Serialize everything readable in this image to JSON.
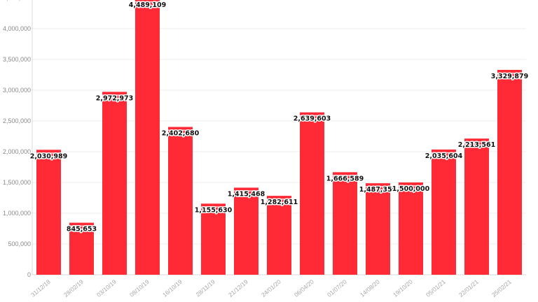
{
  "chart_data": {
    "type": "bar",
    "title": "",
    "xlabel": "",
    "ylabel": "",
    "categories": [
      "31/12/18",
      "28/02/19",
      "03/10/19",
      "08/10/19",
      "16/10/19",
      "28/11/19",
      "21/12/19",
      "24/01/20",
      "06/04/20",
      "01/07/20",
      "14/08/20",
      "19/10/20",
      "05/01/21",
      "22/01/21",
      "25/02/21"
    ],
    "values": [
      2030989,
      845653,
      2972973,
      4489109,
      2402680,
      1155630,
      1415468,
      1282611,
      2639603,
      1666589,
      1487359,
      1500000,
      2035604,
      2213561,
      3329879
    ],
    "data_labels": [
      "2,030,989",
      "845,653",
      "2,972,973",
      "4,489,109",
      "2,402,680",
      "1,155,630",
      "1,415,468",
      "1,282,611",
      "2,639,603",
      "1,666,589",
      "1,487,359",
      "1,500,000",
      "2,035,604",
      "2,213,561",
      "3,329,879"
    ],
    "y_ticks": [
      0,
      500000,
      1000000,
      1500000,
      2000000,
      2500000,
      3000000,
      3500000,
      4000000,
      4500000
    ],
    "y_tick_labels": [
      "0",
      "500,000",
      "1,000,000",
      "1,500,000",
      "2,000,000",
      "2,500,000",
      "3,000,000",
      "3,500,000",
      "4,000,000",
      "4,500,000"
    ],
    "ylim": [
      0,
      4500000
    ],
    "grid": true,
    "colors": {
      "bar": "#ff2a36",
      "bar_cap": "#ffffff",
      "grid": "#ececec",
      "axis": "#d8d8d8"
    }
  }
}
